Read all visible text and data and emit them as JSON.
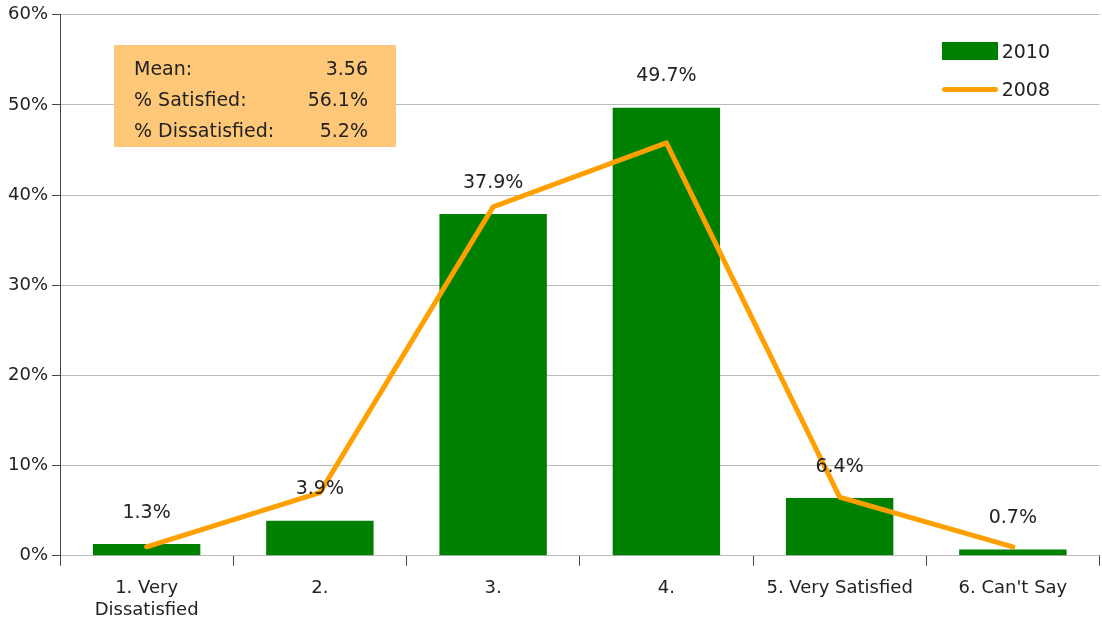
{
  "chart_data": {
    "type": "bar",
    "categories": [
      "1. Very Dissatisfied",
      "2.",
      "3.",
      "4.",
      "5. Very Satisfied",
      "6. Can't Say"
    ],
    "series": [
      {
        "name": "2010",
        "color": "#008000",
        "values": [
          1.3,
          3.9,
          37.9,
          49.7,
          6.4,
          0.7
        ],
        "value_labels": [
          "1.3%",
          "3.9%",
          "37.9%",
          "49.7%",
          "6.4%",
          "0.7%"
        ]
      },
      {
        "name": "2008",
        "type": "line",
        "color": "#ffa000",
        "values": [
          1.0,
          7.0,
          38.7,
          45.8,
          6.5,
          1.0
        ]
      }
    ],
    "ylim": [
      0,
      60
    ],
    "yticks": [
      {
        "value": 0,
        "label": "0%"
      },
      {
        "value": 10,
        "label": "10%"
      },
      {
        "value": 20,
        "label": "20%"
      },
      {
        "value": 30,
        "label": "30%"
      },
      {
        "value": 40,
        "label": "40%"
      },
      {
        "value": 50,
        "label": "50%"
      },
      {
        "value": 60,
        "label": "60%"
      }
    ],
    "grid": "y",
    "legend": "top right",
    "marker": "none",
    "line_style": "solid",
    "annotations": [
      "Mean:",
      "3.56",
      "% Satisfied:",
      "56.1%",
      "% Dissatisfied:",
      "5.2%"
    ]
  }
}
